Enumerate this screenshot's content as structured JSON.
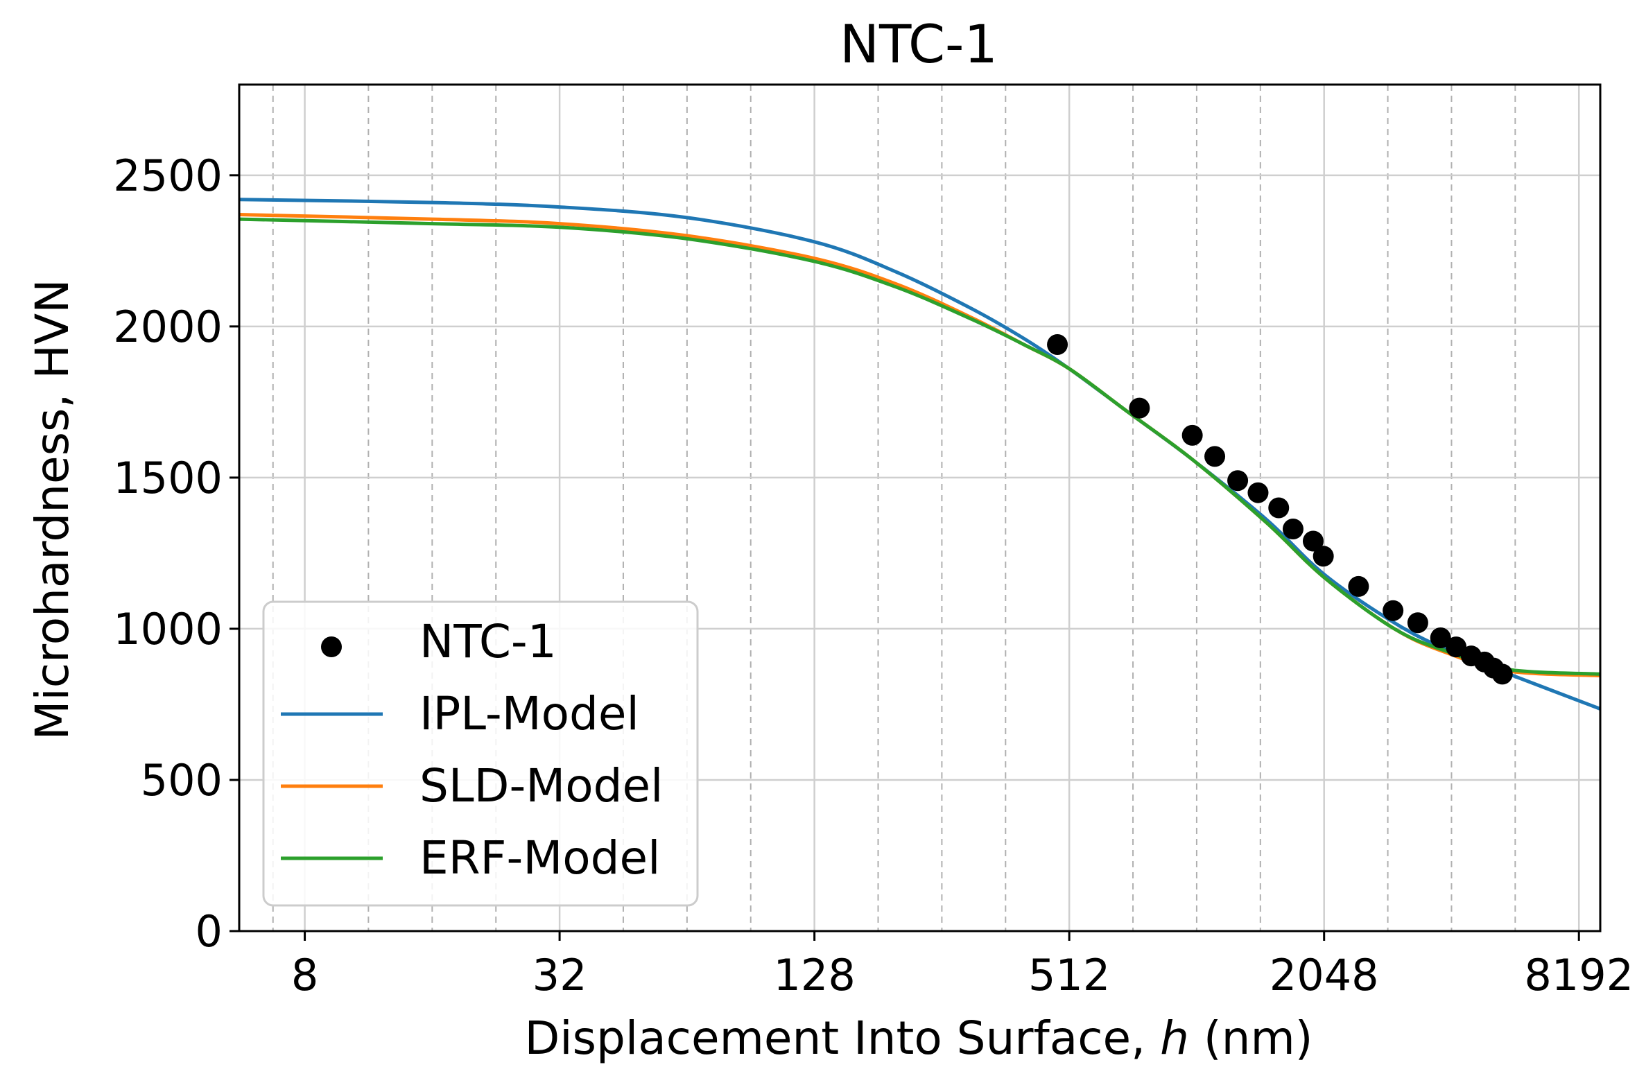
{
  "chart_data": {
    "type": "scatter",
    "title": "NTC-1",
    "xlabel_prefix": "Displacement Into Surface, ",
    "xlabel_var": "h",
    "xlabel_suffix": " (nm)",
    "ylabel": "Microhardness, HVN",
    "xscale": "log2",
    "xlim": [
      5.6,
      9200
    ],
    "ylim": [
      0,
      2800
    ],
    "xticks": [
      8,
      32,
      128,
      512,
      2048,
      8192
    ],
    "xtick_labels": [
      "8",
      "32",
      "128",
      "512",
      "2048",
      "8192"
    ],
    "xminor": [
      6.73,
      11.31,
      16,
      22.63,
      45.25,
      64,
      90.51,
      181.02,
      256,
      362.04,
      724.08,
      1024,
      1448.15,
      2896.31,
      4096,
      5792.62
    ],
    "yticks": [
      0,
      500,
      1000,
      1500,
      2000,
      2500
    ],
    "ytick_labels": [
      "0",
      "500",
      "1000",
      "1500",
      "2000",
      "2500"
    ],
    "grid": true,
    "legend_position": "lower-left",
    "series": [
      {
        "name": "NTC-1",
        "kind": "scatter",
        "color": "#000000",
        "x": [
          480,
          750,
          1000,
          1130,
          1280,
          1430,
          1600,
          1730,
          1930,
          2040,
          2470,
          2980,
          3410,
          3860,
          4200,
          4560,
          4900,
          5150,
          5400
        ],
        "y": [
          1940,
          1730,
          1640,
          1570,
          1490,
          1450,
          1400,
          1330,
          1290,
          1240,
          1140,
          1060,
          1020,
          970,
          940,
          910,
          890,
          870,
          850
        ]
      },
      {
        "name": "IPL-Model",
        "kind": "line",
        "color": "#1f77b4",
        "x": [
          5.6,
          16,
          32,
          64,
          128,
          200,
          300,
          400,
          512,
          700,
          1000,
          1500,
          2048,
          3000,
          4000,
          5600,
          9200
        ],
        "y": [
          2420,
          2410,
          2395,
          2360,
          2280,
          2180,
          2060,
          1960,
          1860,
          1720,
          1560,
          1360,
          1180,
          1020,
          930,
          850,
          735
        ]
      },
      {
        "name": "SLD-Model",
        "kind": "line",
        "color": "#ff7f0e",
        "x": [
          5.6,
          16,
          32,
          64,
          128,
          200,
          300,
          400,
          512,
          700,
          1000,
          1500,
          2048,
          3000,
          4000,
          5600,
          9200
        ],
        "y": [
          2370,
          2355,
          2340,
          2300,
          2225,
          2140,
          2030,
          1940,
          1860,
          1720,
          1560,
          1350,
          1170,
          1000,
          920,
          860,
          845
        ]
      },
      {
        "name": "ERF-Model",
        "kind": "line",
        "color": "#2ca02c",
        "x": [
          5.6,
          16,
          32,
          64,
          128,
          200,
          300,
          400,
          512,
          700,
          1000,
          1500,
          2048,
          3000,
          4000,
          5600,
          9200
        ],
        "y": [
          2355,
          2340,
          2328,
          2290,
          2215,
          2130,
          2025,
          1940,
          1860,
          1720,
          1560,
          1350,
          1170,
          1000,
          925,
          865,
          850
        ]
      }
    ]
  }
}
